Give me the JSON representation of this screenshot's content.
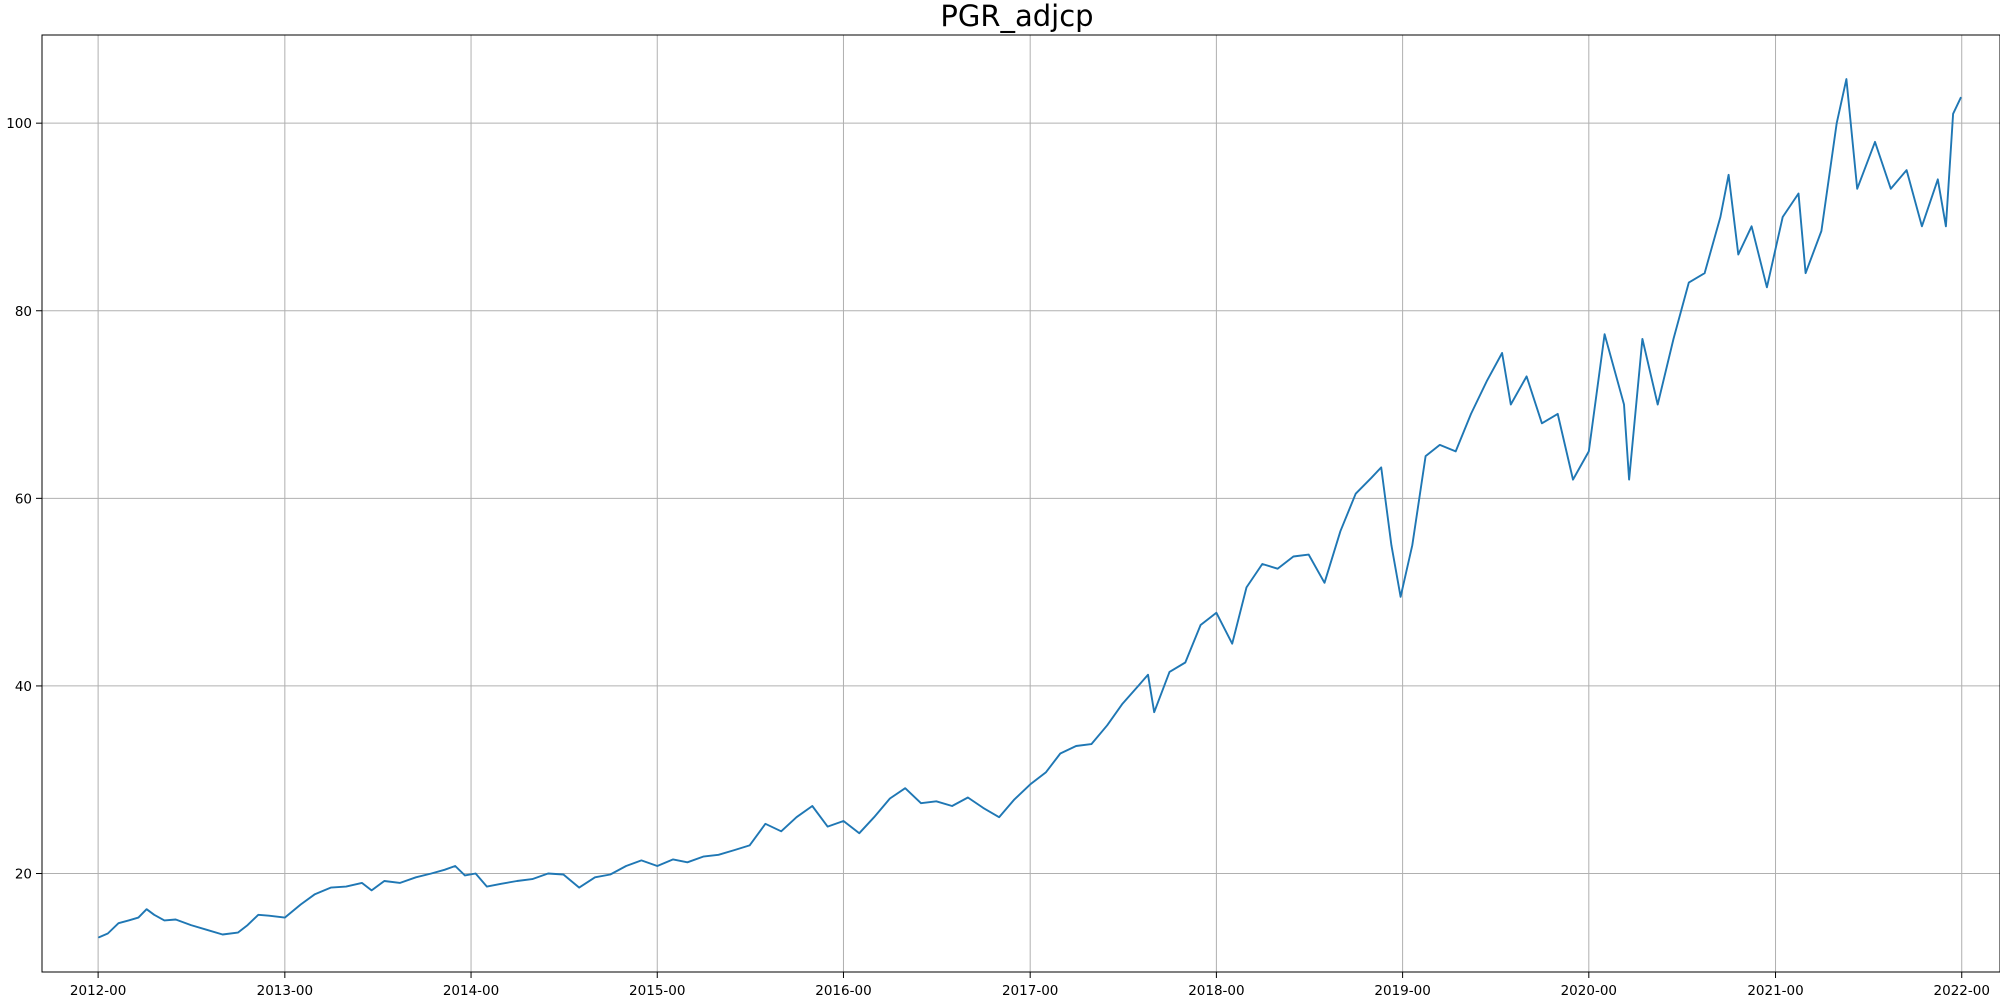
{
  "chart_data": {
    "type": "line",
    "title": "PGR_adjcp",
    "xlabel": "",
    "ylabel": "",
    "x_axis_kind": "date",
    "xlim": [
      "2011-09-13",
      "2022-03-17"
    ],
    "ylim": [
      9.5,
      109.4
    ],
    "x_ticks": [
      "2012-01-01",
      "2013-01-01",
      "2014-01-01",
      "2015-01-01",
      "2016-01-01",
      "2017-01-01",
      "2018-01-01",
      "2019-01-01",
      "2020-01-01",
      "2021-01-01",
      "2022-01-01"
    ],
    "x_tick_labels": [
      "2012-00",
      "2013-00",
      "2014-00",
      "2015-00",
      "2016-00",
      "2017-00",
      "2018-00",
      "2019-00",
      "2020-00",
      "2021-00",
      "2022-00"
    ],
    "y_ticks": [
      20,
      40,
      60,
      80,
      100
    ],
    "y_tick_labels": [
      "20",
      "40",
      "60",
      "80",
      "100"
    ],
    "grid": true,
    "legend": "none",
    "colors": {
      "series": "#1f77b4",
      "grid": "#b0b0b0",
      "axes": "#000000"
    },
    "series": [
      {
        "points": [
          [
            "2012-01-03",
            13.2
          ],
          [
            "2012-01-20",
            13.6
          ],
          [
            "2012-02-10",
            14.7
          ],
          [
            "2012-03-01",
            15.0
          ],
          [
            "2012-03-20",
            15.3
          ],
          [
            "2012-04-05",
            16.2
          ],
          [
            "2012-04-20",
            15.6
          ],
          [
            "2012-05-10",
            15.0
          ],
          [
            "2012-06-01",
            15.1
          ],
          [
            "2012-07-01",
            14.5
          ],
          [
            "2012-08-01",
            14.0
          ],
          [
            "2012-09-01",
            13.5
          ],
          [
            "2012-10-01",
            13.7
          ],
          [
            "2012-10-20",
            14.5
          ],
          [
            "2012-11-10",
            15.6
          ],
          [
            "2012-12-01",
            15.5
          ],
          [
            "2013-01-01",
            15.3
          ],
          [
            "2013-02-01",
            16.7
          ],
          [
            "2013-03-01",
            17.8
          ],
          [
            "2013-04-01",
            18.5
          ],
          [
            "2013-05-01",
            18.6
          ],
          [
            "2013-06-01",
            19.0
          ],
          [
            "2013-06-20",
            18.2
          ],
          [
            "2013-07-15",
            19.2
          ],
          [
            "2013-08-15",
            19.0
          ],
          [
            "2013-09-15",
            19.6
          ],
          [
            "2013-10-15",
            20.0
          ],
          [
            "2013-11-10",
            20.4
          ],
          [
            "2013-12-01",
            20.8
          ],
          [
            "2013-12-20",
            19.8
          ],
          [
            "2014-01-10",
            20.0
          ],
          [
            "2014-02-01",
            18.6
          ],
          [
            "2014-03-01",
            18.9
          ],
          [
            "2014-04-01",
            19.2
          ],
          [
            "2014-05-01",
            19.4
          ],
          [
            "2014-06-01",
            20.0
          ],
          [
            "2014-07-01",
            19.9
          ],
          [
            "2014-08-01",
            18.5
          ],
          [
            "2014-09-01",
            19.6
          ],
          [
            "2014-10-01",
            19.9
          ],
          [
            "2014-11-01",
            20.8
          ],
          [
            "2014-12-01",
            21.4
          ],
          [
            "2015-01-01",
            20.8
          ],
          [
            "2015-02-01",
            21.5
          ],
          [
            "2015-03-01",
            21.2
          ],
          [
            "2015-04-01",
            21.8
          ],
          [
            "2015-05-01",
            22.0
          ],
          [
            "2015-06-01",
            22.5
          ],
          [
            "2015-07-01",
            23.0
          ],
          [
            "2015-08-01",
            25.3
          ],
          [
            "2015-09-01",
            24.5
          ],
          [
            "2015-10-01",
            26.0
          ],
          [
            "2015-11-01",
            27.2
          ],
          [
            "2015-12-01",
            25.0
          ],
          [
            "2016-01-01",
            25.6
          ],
          [
            "2016-02-01",
            24.3
          ],
          [
            "2016-03-01",
            26.0
          ],
          [
            "2016-04-01",
            28.0
          ],
          [
            "2016-05-01",
            29.1
          ],
          [
            "2016-06-01",
            27.5
          ],
          [
            "2016-07-01",
            27.7
          ],
          [
            "2016-08-01",
            27.2
          ],
          [
            "2016-09-01",
            28.1
          ],
          [
            "2016-10-01",
            27.0
          ],
          [
            "2016-11-01",
            26.0
          ],
          [
            "2016-12-01",
            27.9
          ],
          [
            "2017-01-01",
            29.5
          ],
          [
            "2017-02-01",
            30.8
          ],
          [
            "2017-03-01",
            32.8
          ],
          [
            "2017-04-01",
            33.6
          ],
          [
            "2017-05-01",
            33.8
          ],
          [
            "2017-06-01",
            35.8
          ],
          [
            "2017-07-01",
            38.1
          ],
          [
            "2017-08-01",
            40.0
          ],
          [
            "2017-08-20",
            41.2
          ],
          [
            "2017-09-01",
            37.2
          ],
          [
            "2017-10-01",
            41.5
          ],
          [
            "2017-11-01",
            42.5
          ],
          [
            "2017-12-01",
            46.5
          ],
          [
            "2018-01-01",
            47.8
          ],
          [
            "2018-02-01",
            44.5
          ],
          [
            "2018-03-01",
            50.5
          ],
          [
            "2018-04-01",
            53.0
          ],
          [
            "2018-05-01",
            52.5
          ],
          [
            "2018-06-01",
            53.8
          ],
          [
            "2018-07-01",
            54.0
          ],
          [
            "2018-08-01",
            51.0
          ],
          [
            "2018-09-01",
            56.5
          ],
          [
            "2018-10-01",
            60.5
          ],
          [
            "2018-11-01",
            62.2
          ],
          [
            "2018-11-20",
            63.3
          ],
          [
            "2018-12-10",
            55.0
          ],
          [
            "2018-12-28",
            49.5
          ],
          [
            "2019-01-20",
            55.0
          ],
          [
            "2019-02-15",
            64.5
          ],
          [
            "2019-03-15",
            65.7
          ],
          [
            "2019-04-15",
            65.0
          ],
          [
            "2019-05-15",
            69.0
          ],
          [
            "2019-06-15",
            72.5
          ],
          [
            "2019-07-15",
            75.5
          ],
          [
            "2019-08-01",
            70.0
          ],
          [
            "2019-09-01",
            73.0
          ],
          [
            "2019-10-01",
            68.0
          ],
          [
            "2019-11-01",
            69.0
          ],
          [
            "2019-12-01",
            62.0
          ],
          [
            "2020-01-01",
            65.0
          ],
          [
            "2020-02-01",
            77.5
          ],
          [
            "2020-03-10",
            70.0
          ],
          [
            "2020-03-20",
            62.0
          ],
          [
            "2020-04-15",
            77.0
          ],
          [
            "2020-05-15",
            70.0
          ],
          [
            "2020-06-15",
            77.0
          ],
          [
            "2020-07-15",
            83.0
          ],
          [
            "2020-08-15",
            84.0
          ],
          [
            "2020-09-15",
            90.0
          ],
          [
            "2020-10-01",
            94.5
          ],
          [
            "2020-10-20",
            86.0
          ],
          [
            "2020-11-15",
            89.0
          ],
          [
            "2020-12-15",
            82.5
          ],
          [
            "2021-01-15",
            90.0
          ],
          [
            "2021-02-15",
            92.5
          ],
          [
            "2021-03-01",
            84.0
          ],
          [
            "2021-04-01",
            88.5
          ],
          [
            "2021-05-01",
            100.0
          ],
          [
            "2021-05-20",
            104.7
          ],
          [
            "2021-06-10",
            93.0
          ],
          [
            "2021-07-15",
            98.0
          ],
          [
            "2021-08-15",
            93.0
          ],
          [
            "2021-09-15",
            95.0
          ],
          [
            "2021-10-15",
            89.0
          ],
          [
            "2021-11-15",
            94.0
          ],
          [
            "2021-12-01",
            89.0
          ],
          [
            "2021-12-15",
            101.0
          ],
          [
            "2021-12-30",
            102.7
          ]
        ]
      }
    ]
  }
}
